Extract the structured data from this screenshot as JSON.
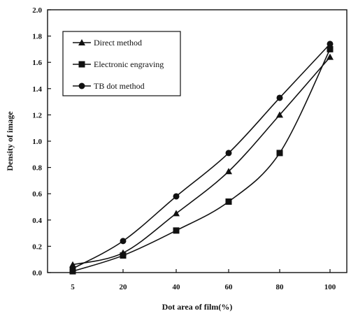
{
  "chart_data": {
    "type": "line",
    "title": "",
    "xlabel": "Dot area of film(%)",
    "ylabel": "Density of image",
    "x": [
      5,
      20,
      40,
      60,
      80,
      100
    ],
    "x_tick_labels": [
      "5",
      "20",
      "40",
      "60",
      "80",
      "100"
    ],
    "ylim": [
      0,
      2.0
    ],
    "y_tick_labels": [
      "0.0",
      "0.2",
      "0.4",
      "0.6",
      "0.8",
      "1.0",
      "1.2",
      "1.4",
      "1.6",
      "1.8",
      "2.0"
    ],
    "grid": false,
    "legend_position": "top-left",
    "series": [
      {
        "name": "Direct method",
        "marker": "triangle",
        "values": [
          0.06,
          0.15,
          0.45,
          0.77,
          1.2,
          1.64
        ]
      },
      {
        "name": "Electronic engraving",
        "marker": "square",
        "values": [
          0.01,
          0.13,
          0.32,
          0.54,
          0.91,
          1.7
        ]
      },
      {
        "name": "TB dot method",
        "marker": "circle",
        "values": [
          0.03,
          0.24,
          0.58,
          0.91,
          1.33,
          1.74
        ]
      }
    ],
    "colors": {
      "line": "#111111",
      "axis": "#111111"
    }
  }
}
